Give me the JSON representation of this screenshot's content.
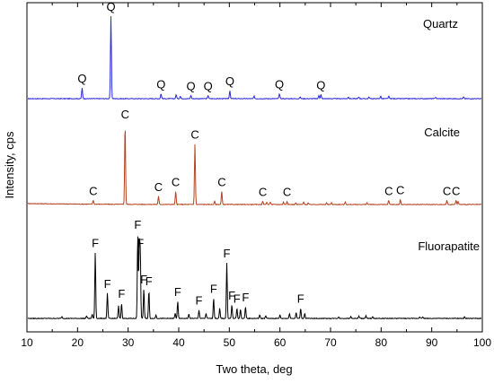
{
  "chart_data": {
    "type": "line",
    "xlabel": "Two theta, deg",
    "ylabel": "Intensity, cps",
    "xlim": [
      10,
      100
    ],
    "xticks": [
      10,
      20,
      30,
      40,
      50,
      60,
      70,
      80,
      90,
      100
    ],
    "grid": false,
    "series": [
      {
        "name": "Quartz",
        "color": "#2b2bd6",
        "peak_label": "Q",
        "peaks": [
          {
            "x": 20.9,
            "y": 0.13,
            "label": true
          },
          {
            "x": 26.6,
            "y": 1.0,
            "label": true
          },
          {
            "x": 36.5,
            "y": 0.06,
            "label": true
          },
          {
            "x": 39.5,
            "y": 0.05,
            "label": false
          },
          {
            "x": 40.3,
            "y": 0.03,
            "label": false
          },
          {
            "x": 42.4,
            "y": 0.04,
            "label": true
          },
          {
            "x": 45.8,
            "y": 0.04,
            "label": true
          },
          {
            "x": 50.1,
            "y": 0.1,
            "label": true
          },
          {
            "x": 54.9,
            "y": 0.03,
            "label": false
          },
          {
            "x": 59.9,
            "y": 0.06,
            "label": true
          },
          {
            "x": 64.0,
            "y": 0.02,
            "label": false
          },
          {
            "x": 67.7,
            "y": 0.04,
            "label": false
          },
          {
            "x": 68.1,
            "y": 0.05,
            "label": true
          },
          {
            "x": 73.5,
            "y": 0.02,
            "label": false
          },
          {
            "x": 75.6,
            "y": 0.02,
            "label": false
          },
          {
            "x": 77.6,
            "y": 0.02,
            "label": false
          },
          {
            "x": 79.9,
            "y": 0.03,
            "label": false
          },
          {
            "x": 81.5,
            "y": 0.03,
            "label": false
          },
          {
            "x": 90.8,
            "y": 0.02,
            "label": false
          },
          {
            "x": 96.3,
            "y": 0.02,
            "label": false
          }
        ]
      },
      {
        "name": "Calcite",
        "color": "#b5431f",
        "peak_label": "C",
        "peaks": [
          {
            "x": 23.1,
            "y": 0.05,
            "label": true
          },
          {
            "x": 29.4,
            "y": 1.0,
            "label": true
          },
          {
            "x": 36.0,
            "y": 0.1,
            "label": true
          },
          {
            "x": 39.4,
            "y": 0.16,
            "label": true
          },
          {
            "x": 43.2,
            "y": 0.75,
            "label": true
          },
          {
            "x": 47.1,
            "y": 0.04,
            "label": false
          },
          {
            "x": 48.5,
            "y": 0.16,
            "label": true
          },
          {
            "x": 56.6,
            "y": 0.04,
            "label": true
          },
          {
            "x": 57.4,
            "y": 0.03,
            "label": false
          },
          {
            "x": 58.1,
            "y": 0.03,
            "label": false
          },
          {
            "x": 60.7,
            "y": 0.03,
            "label": false
          },
          {
            "x": 61.4,
            "y": 0.04,
            "label": true
          },
          {
            "x": 63.1,
            "y": 0.02,
            "label": false
          },
          {
            "x": 64.7,
            "y": 0.03,
            "label": false
          },
          {
            "x": 65.6,
            "y": 0.02,
            "label": false
          },
          {
            "x": 69.2,
            "y": 0.02,
            "label": false
          },
          {
            "x": 70.2,
            "y": 0.02,
            "label": false
          },
          {
            "x": 72.9,
            "y": 0.03,
            "label": false
          },
          {
            "x": 77.2,
            "y": 0.02,
            "label": false
          },
          {
            "x": 81.5,
            "y": 0.05,
            "label": true
          },
          {
            "x": 83.8,
            "y": 0.06,
            "label": true
          },
          {
            "x": 93.0,
            "y": 0.05,
            "label": true
          },
          {
            "x": 94.8,
            "y": 0.05,
            "label": true
          },
          {
            "x": 95.2,
            "y": 0.04,
            "label": false
          }
        ]
      },
      {
        "name": "Fluorapatite",
        "color": "#000000",
        "peak_label": "F",
        "peaks": [
          {
            "x": 16.9,
            "y": 0.02,
            "label": false
          },
          {
            "x": 21.8,
            "y": 0.03,
            "label": false
          },
          {
            "x": 22.9,
            "y": 0.05,
            "label": false
          },
          {
            "x": 23.5,
            "y": 0.78,
            "label": true
          },
          {
            "x": 25.9,
            "y": 0.3,
            "label": true
          },
          {
            "x": 28.1,
            "y": 0.15,
            "label": false
          },
          {
            "x": 28.7,
            "y": 0.18,
            "label": true
          },
          {
            "x": 31.9,
            "y": 1.0,
            "label": true
          },
          {
            "x": 32.2,
            "y": 0.9,
            "label": false
          },
          {
            "x": 32.4,
            "y": 0.78,
            "label": true
          },
          {
            "x": 33.1,
            "y": 0.35,
            "label": true
          },
          {
            "x": 34.1,
            "y": 0.33,
            "label": true
          },
          {
            "x": 35.5,
            "y": 0.04,
            "label": false
          },
          {
            "x": 39.3,
            "y": 0.06,
            "label": false
          },
          {
            "x": 39.8,
            "y": 0.2,
            "label": true
          },
          {
            "x": 42.0,
            "y": 0.05,
            "label": false
          },
          {
            "x": 44.0,
            "y": 0.1,
            "label": true
          },
          {
            "x": 45.4,
            "y": 0.06,
            "label": false
          },
          {
            "x": 46.9,
            "y": 0.24,
            "label": true
          },
          {
            "x": 48.1,
            "y": 0.12,
            "label": false
          },
          {
            "x": 49.5,
            "y": 0.66,
            "label": true
          },
          {
            "x": 50.5,
            "y": 0.16,
            "label": true
          },
          {
            "x": 51.5,
            "y": 0.12,
            "label": true
          },
          {
            "x": 52.2,
            "y": 0.11,
            "label": false
          },
          {
            "x": 53.2,
            "y": 0.14,
            "label": true
          },
          {
            "x": 56.0,
            "y": 0.04,
            "label": false
          },
          {
            "x": 57.2,
            "y": 0.03,
            "label": false
          },
          {
            "x": 60.0,
            "y": 0.04,
            "label": false
          },
          {
            "x": 61.9,
            "y": 0.06,
            "label": false
          },
          {
            "x": 63.2,
            "y": 0.07,
            "label": false
          },
          {
            "x": 64.1,
            "y": 0.12,
            "label": true
          },
          {
            "x": 64.9,
            "y": 0.06,
            "label": false
          },
          {
            "x": 71.6,
            "y": 0.02,
            "label": false
          },
          {
            "x": 74.0,
            "y": 0.02,
            "label": false
          },
          {
            "x": 75.6,
            "y": 0.03,
            "label": false
          },
          {
            "x": 77.0,
            "y": 0.03,
            "label": false
          },
          {
            "x": 78.3,
            "y": 0.02,
            "label": false
          },
          {
            "x": 87.6,
            "y": 0.02,
            "label": false
          },
          {
            "x": 88.2,
            "y": 0.02,
            "label": false
          },
          {
            "x": 96.5,
            "y": 0.02,
            "label": false
          }
        ]
      }
    ]
  }
}
